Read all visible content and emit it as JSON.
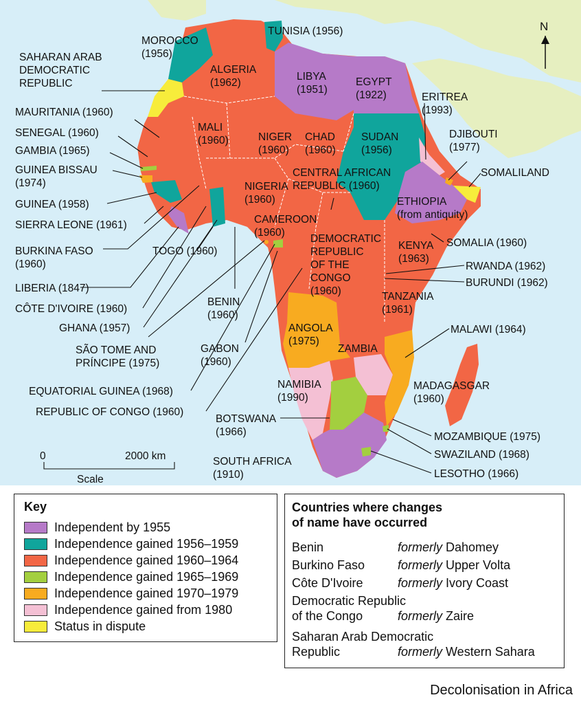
{
  "map": {
    "north_label": "N",
    "scale": {
      "zero": "0",
      "distance": "2000 km",
      "label": "Scale"
    },
    "colors": {
      "sea": "#d7eef8",
      "land_other": "#e6efc0",
      "independent_by_1955": "#b67ac8",
      "independence_1956_1959": "#10a59c",
      "independence_1960_1964": "#f26645",
      "independence_1965_1969": "#a3cf3f",
      "independence_1970_1979": "#f8ab20",
      "independence_from_1980": "#f4c0d4",
      "status_in_dispute": "#f7ec3b"
    },
    "labels": {
      "morocco": "MOROCCO\n(1956)",
      "tunisia": "TUNISIA (1956)",
      "western_sahara": "SAHARAN ARAB\nDEMOCRATIC\nREPUBLIC",
      "algeria": "ALGERIA\n(1962)",
      "libya": "LIBYA\n(1951)",
      "egypt": "EGYPT\n(1922)",
      "eritrea": "ERITREA\n(1993)",
      "djibouti": "DJIBOUTI\n(1977)",
      "somaliland": "SOMALILAND",
      "mauritania": "MAURITANIA (1960)",
      "senegal": "SENEGAL (1960)",
      "gambia": "GAMBIA (1965)",
      "guinea_bissau": "GUINEA BISSAU\n(1974)",
      "guinea": "GUINEA (1958)",
      "sierra_leone": "SIERRA LEONE (1961)",
      "burkina_faso": "BURKINA FASO\n(1960)",
      "togo": "TOGO (1960)",
      "liberia": "LIBERIA (1847)",
      "cote_divoire": "CÔTE D'IVOIRE (1960)",
      "ghana": "GHANA (1957)",
      "sao_tome": "SÃO TOME AND\nPRÍNCIPE (1975)",
      "equatorial_guinea": "EQUATORIAL GUINEA (1968)",
      "republic_of_congo": "REPUBLIC OF CONGO (1960)",
      "mali": "MALI\n(1960)",
      "niger": "NIGER\n(1960)",
      "chad": "CHAD\n(1960)",
      "sudan": "SUDAN\n(1956)",
      "car": "CENTRAL AFRICAN\nREPUBLIC (1960)",
      "nigeria": "NIGERIA\n(1960)",
      "cameroon": "CAMEROON\n(1960)",
      "ethiopia": "ETHIOPIA\n(from antiquity)",
      "somalia": "SOMALIA (1960)",
      "drc": "DEMOCRATIC\nREPUBLIC\nOF THE\nCONGO\n(1960)",
      "kenya": "KENYA\n(1963)",
      "rwanda": "RWANDA (1962)",
      "burundi": "BURUNDI (1962)",
      "benin": "BENIN\n(1960)",
      "gabon": "GABON\n(1960)",
      "tanzania": "TANZANIA\n(1961)",
      "angola": "ANGOLA\n(1975)",
      "zambia": "ZAMBIA",
      "malawi": "MALAWI (1964)",
      "namibia": "NAMIBIA\n(1990)",
      "madagascar": "MADAGASGAR\n(1960)",
      "botswana": "BOTSWANA\n(1966)",
      "mozambique": "MOZAMBIQUE (1975)",
      "swaziland": "SWAZILAND (1968)",
      "south_africa": "SOUTH AFRICA\n(1910)",
      "lesotho": "LESOTHO (1966)"
    }
  },
  "key": {
    "title": "Key",
    "items": [
      {
        "label": "Independent by 1955",
        "color": "#b67ac8"
      },
      {
        "label": "Independence gained 1956–1959",
        "color": "#10a59c"
      },
      {
        "label": "Independence gained 1960–1964",
        "color": "#f26645"
      },
      {
        "label": "Independence gained 1965–1969",
        "color": "#a3cf3f"
      },
      {
        "label": "Independence gained 1970–1979",
        "color": "#f8ab20"
      },
      {
        "label": "Independence gained from 1980",
        "color": "#f4c0d4"
      },
      {
        "label": "Status in dispute",
        "color": "#f7ec3b"
      }
    ]
  },
  "name_changes": {
    "title": "Countries where changes\nof name have occurred",
    "formerly_word": "formerly",
    "rows": [
      {
        "country": "Benin",
        "former": "Dahomey"
      },
      {
        "country": "Burkino Faso",
        "former": "Upper Volta"
      },
      {
        "country": "Côte D'Ivoire",
        "former": "Ivory Coast"
      },
      {
        "country": "Democratic Republic\nof the Congo",
        "former": "Zaire"
      },
      {
        "country": "Saharan Arab Democratic\nRepublic",
        "former": "Western Sahara"
      }
    ]
  },
  "caption": "Decolonisation in Africa"
}
